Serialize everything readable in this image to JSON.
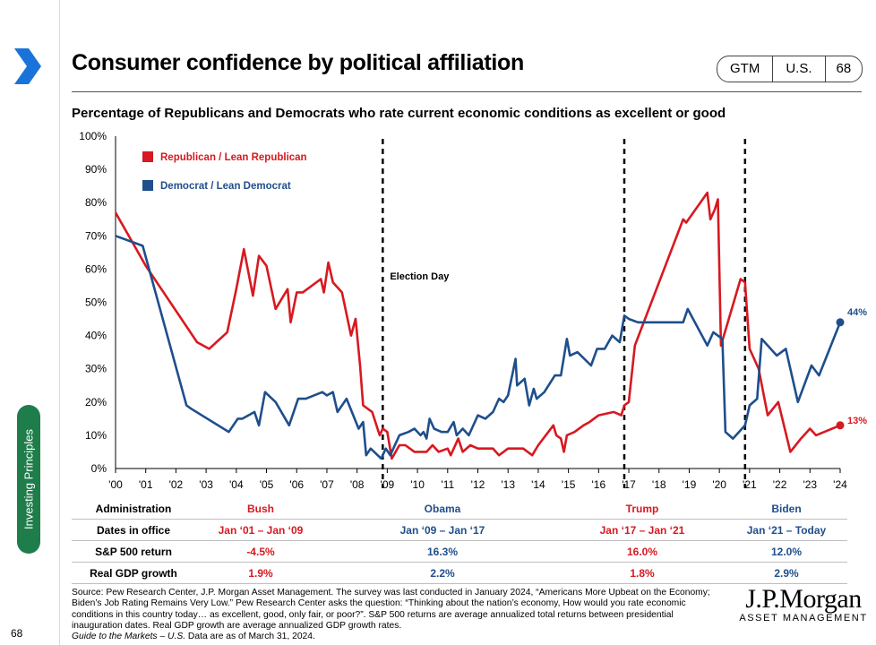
{
  "header": {
    "title": "Consumer confidence by political affiliation",
    "badges": [
      "GTM",
      "U.S.",
      "68"
    ]
  },
  "side_tab": "Investing Principles",
  "page_number": "68",
  "colors": {
    "republican": "#d71920",
    "democrat": "#1f4e8c",
    "accent": "#1e7d4a"
  },
  "chart_data": {
    "type": "line",
    "title": "Percentage of Republicans and Democrats who rate current economic conditions as excellent or good",
    "ylim": [
      0,
      100
    ],
    "y_ticks": [
      "0%",
      "10%",
      "20%",
      "30%",
      "40%",
      "50%",
      "60%",
      "70%",
      "80%",
      "90%",
      "100%"
    ],
    "xlim": [
      2000,
      2024
    ],
    "x_ticks": [
      "'00",
      "'01",
      "'02",
      "'03",
      "'04",
      "'05",
      "'06",
      "'07",
      "'08",
      "'09",
      "'10",
      "'11",
      "'12",
      "'13",
      "'14",
      "'15",
      "'16",
      "'17",
      "'18",
      "'19",
      "'20",
      "'21",
      "'22",
      "'23",
      "'24"
    ],
    "annotation": "Election Day",
    "election_lines": [
      2008.85,
      2016.85,
      2020.85
    ],
    "legend_position": "top-left",
    "end_labels": [
      "13%",
      "44%"
    ],
    "series": [
      {
        "name": "Republican / Lean Republican",
        "color": "#d71920",
        "points": [
          [
            2000.0,
            77
          ],
          [
            2000.5,
            69
          ],
          [
            2001.0,
            61
          ],
          [
            2002.7,
            38
          ],
          [
            2003.1,
            36
          ],
          [
            2003.7,
            41
          ],
          [
            2004.0,
            54
          ],
          [
            2004.25,
            66
          ],
          [
            2004.55,
            52
          ],
          [
            2004.75,
            64
          ],
          [
            2005.0,
            61
          ],
          [
            2005.3,
            48
          ],
          [
            2005.7,
            54
          ],
          [
            2005.8,
            44
          ],
          [
            2006.0,
            53
          ],
          [
            2006.2,
            53
          ],
          [
            2006.8,
            57
          ],
          [
            2006.9,
            53
          ],
          [
            2007.05,
            62
          ],
          [
            2007.2,
            56
          ],
          [
            2007.5,
            53
          ],
          [
            2007.8,
            40
          ],
          [
            2007.95,
            45
          ],
          [
            2008.1,
            31
          ],
          [
            2008.2,
            19
          ],
          [
            2008.5,
            17
          ],
          [
            2008.75,
            10
          ],
          [
            2008.85,
            12
          ],
          [
            2009.0,
            11
          ],
          [
            2009.15,
            3
          ],
          [
            2009.4,
            7
          ],
          [
            2009.6,
            7
          ],
          [
            2009.9,
            5
          ],
          [
            2010.3,
            5
          ],
          [
            2010.5,
            7
          ],
          [
            2010.7,
            5
          ],
          [
            2011.0,
            6
          ],
          [
            2011.1,
            4
          ],
          [
            2011.35,
            9
          ],
          [
            2011.5,
            5
          ],
          [
            2011.75,
            7
          ],
          [
            2012.0,
            6
          ],
          [
            2012.5,
            6
          ],
          [
            2012.7,
            4
          ],
          [
            2013.0,
            6
          ],
          [
            2013.5,
            6
          ],
          [
            2013.8,
            4
          ],
          [
            2014.0,
            7
          ],
          [
            2014.5,
            13
          ],
          [
            2014.6,
            10
          ],
          [
            2014.75,
            9
          ],
          [
            2014.85,
            5
          ],
          [
            2014.95,
            10
          ],
          [
            2015.2,
            11
          ],
          [
            2015.5,
            13
          ],
          [
            2015.7,
            14
          ],
          [
            2016.0,
            16
          ],
          [
            2016.5,
            17
          ],
          [
            2016.75,
            16
          ],
          [
            2016.85,
            19
          ],
          [
            2017.0,
            20
          ],
          [
            2017.2,
            37
          ],
          [
            2018.8,
            75
          ],
          [
            2018.9,
            74
          ],
          [
            2019.6,
            83
          ],
          [
            2019.7,
            75
          ],
          [
            2019.85,
            78
          ],
          [
            2019.95,
            81
          ],
          [
            2020.05,
            37
          ],
          [
            2020.7,
            57
          ],
          [
            2020.85,
            56
          ],
          [
            2021.0,
            36
          ],
          [
            2021.3,
            30
          ],
          [
            2021.6,
            16
          ],
          [
            2021.95,
            20
          ],
          [
            2022.35,
            5
          ],
          [
            2022.7,
            9
          ],
          [
            2023.0,
            12
          ],
          [
            2023.2,
            10
          ],
          [
            2024.0,
            13
          ]
        ]
      },
      {
        "name": "Democrat / Lean Democrat",
        "color": "#1f4e8c",
        "points": [
          [
            2000.0,
            70
          ],
          [
            2000.9,
            67
          ],
          [
            2002.35,
            19
          ],
          [
            2002.5,
            18
          ],
          [
            2003.75,
            11
          ],
          [
            2004.05,
            15
          ],
          [
            2004.2,
            15
          ],
          [
            2004.6,
            17
          ],
          [
            2004.75,
            13
          ],
          [
            2004.95,
            23
          ],
          [
            2005.3,
            20
          ],
          [
            2005.75,
            13
          ],
          [
            2006.05,
            21
          ],
          [
            2006.3,
            21
          ],
          [
            2006.85,
            23
          ],
          [
            2007.0,
            22
          ],
          [
            2007.2,
            23
          ],
          [
            2007.35,
            17
          ],
          [
            2007.65,
            21
          ],
          [
            2008.05,
            12
          ],
          [
            2008.2,
            14
          ],
          [
            2008.3,
            4
          ],
          [
            2008.45,
            6
          ],
          [
            2008.8,
            3
          ],
          [
            2008.95,
            6
          ],
          [
            2009.1,
            4
          ],
          [
            2009.4,
            10
          ],
          [
            2009.7,
            11
          ],
          [
            2009.9,
            12
          ],
          [
            2010.1,
            10
          ],
          [
            2010.2,
            11
          ],
          [
            2010.3,
            9
          ],
          [
            2010.4,
            15
          ],
          [
            2010.55,
            12
          ],
          [
            2010.8,
            11
          ],
          [
            2011.0,
            11
          ],
          [
            2011.2,
            14
          ],
          [
            2011.3,
            10
          ],
          [
            2011.5,
            12
          ],
          [
            2011.7,
            10
          ],
          [
            2012.0,
            16
          ],
          [
            2012.25,
            15
          ],
          [
            2012.5,
            17
          ],
          [
            2012.7,
            21
          ],
          [
            2012.85,
            20
          ],
          [
            2013.0,
            22
          ],
          [
            2013.25,
            33
          ],
          [
            2013.3,
            25
          ],
          [
            2013.55,
            27
          ],
          [
            2013.7,
            19
          ],
          [
            2013.85,
            24
          ],
          [
            2013.95,
            21
          ],
          [
            2014.2,
            23
          ],
          [
            2014.55,
            28
          ],
          [
            2014.75,
            28
          ],
          [
            2014.95,
            39
          ],
          [
            2015.05,
            34
          ],
          [
            2015.3,
            35
          ],
          [
            2015.75,
            31
          ],
          [
            2015.95,
            36
          ],
          [
            2016.2,
            36
          ],
          [
            2016.45,
            40
          ],
          [
            2016.7,
            38
          ],
          [
            2016.85,
            46
          ],
          [
            2017.0,
            45
          ],
          [
            2017.3,
            44
          ],
          [
            2018.8,
            44
          ],
          [
            2018.95,
            48
          ],
          [
            2019.6,
            37
          ],
          [
            2019.8,
            41
          ],
          [
            2020.1,
            39
          ],
          [
            2020.2,
            11
          ],
          [
            2020.45,
            9
          ],
          [
            2020.85,
            13
          ],
          [
            2021.0,
            19
          ],
          [
            2021.25,
            21
          ],
          [
            2021.4,
            39
          ],
          [
            2021.9,
            34
          ],
          [
            2022.2,
            36
          ],
          [
            2022.6,
            20
          ],
          [
            2023.05,
            31
          ],
          [
            2023.3,
            28
          ],
          [
            2024.0,
            44
          ]
        ]
      }
    ]
  },
  "table": {
    "rows": [
      {
        "label": "Administration",
        "cells": [
          "Bush",
          "Obama",
          "Trump",
          "Biden"
        ]
      },
      {
        "label": "Dates in office",
        "cells": [
          "Jan ‘01 – Jan ‘09",
          "Jan ‘09 – Jan ‘17",
          "Jan ‘17 – Jan ‘21",
          "Jan ‘21 – Today"
        ]
      },
      {
        "label": "S&P 500 return",
        "cells": [
          "-4.5%",
          "16.3%",
          "16.0%",
          "12.0%"
        ]
      },
      {
        "label": "Real GDP growth",
        "cells": [
          "1.9%",
          "2.2%",
          "1.8%",
          "2.9%"
        ]
      }
    ]
  },
  "footer": {
    "source": "Source: Pew Research Center, J.P. Morgan Asset Management. The survey was last conducted in January 2024, “Americans More Upbeat on the Economy; Biden’s Job Rating Remains Very Low.” Pew Research Center asks the question: “Thinking about the nation’s economy, How would you rate economic conditions in this country today… as excellent, good, only fair, or poor?”. S&P 500 returns are average annualized total returns between presidential inauguration dates. Real GDP growth are average annualized GDP growth rates.",
    "guide": "Guide to the Markets – U.S.",
    "data_as_of": " Data are as of March 31, 2024."
  },
  "logo": {
    "main": "J.P.Morgan",
    "sub": "ASSET MANAGEMENT"
  }
}
